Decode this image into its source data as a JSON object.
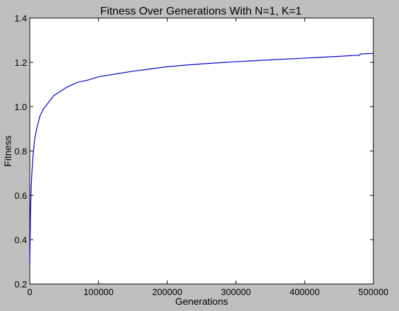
{
  "chart_data": {
    "type": "line",
    "title": "Fitness Over Generations With N=1, K=1",
    "xlabel": "Generations",
    "ylabel": "Fitness",
    "xlim": [
      0,
      500000
    ],
    "ylim": [
      0.2,
      1.4
    ],
    "grid": false,
    "legend": "none",
    "line_color": "#0000cc",
    "x_ticks": [
      0,
      100000,
      200000,
      300000,
      400000,
      500000
    ],
    "x_tick_labels": [
      "0",
      "100000",
      "200000",
      "300000",
      "400000",
      "500000"
    ],
    "y_ticks": [
      0.2,
      0.4,
      0.6,
      0.8,
      1.0,
      1.2,
      1.4
    ],
    "y_tick_labels": [
      "0.2",
      "0.4",
      "0.6",
      "0.8",
      "1.0",
      "1.2",
      "1.4"
    ],
    "series": [
      {
        "x": [
          0,
          500,
          1000,
          2000,
          3000,
          5000,
          7000,
          10000,
          15000,
          20000,
          25000,
          30000,
          35000,
          45000,
          55000,
          70000,
          85000,
          100000,
          110000,
          130000,
          150000,
          175000,
          200000,
          225000,
          250000,
          275000,
          300000,
          325000,
          350000,
          375000,
          400000,
          425000,
          450000,
          470000,
          480000,
          481000,
          500000
        ],
        "y": [
          0.29,
          0.4,
          0.52,
          0.63,
          0.7,
          0.79,
          0.85,
          0.9,
          0.96,
          0.99,
          1.01,
          1.03,
          1.05,
          1.07,
          1.09,
          1.11,
          1.12,
          1.135,
          1.14,
          1.15,
          1.16,
          1.17,
          1.18,
          1.187,
          1.193,
          1.198,
          1.203,
          1.207,
          1.211,
          1.215,
          1.219,
          1.223,
          1.227,
          1.231,
          1.232,
          1.238,
          1.24
        ]
      }
    ]
  }
}
